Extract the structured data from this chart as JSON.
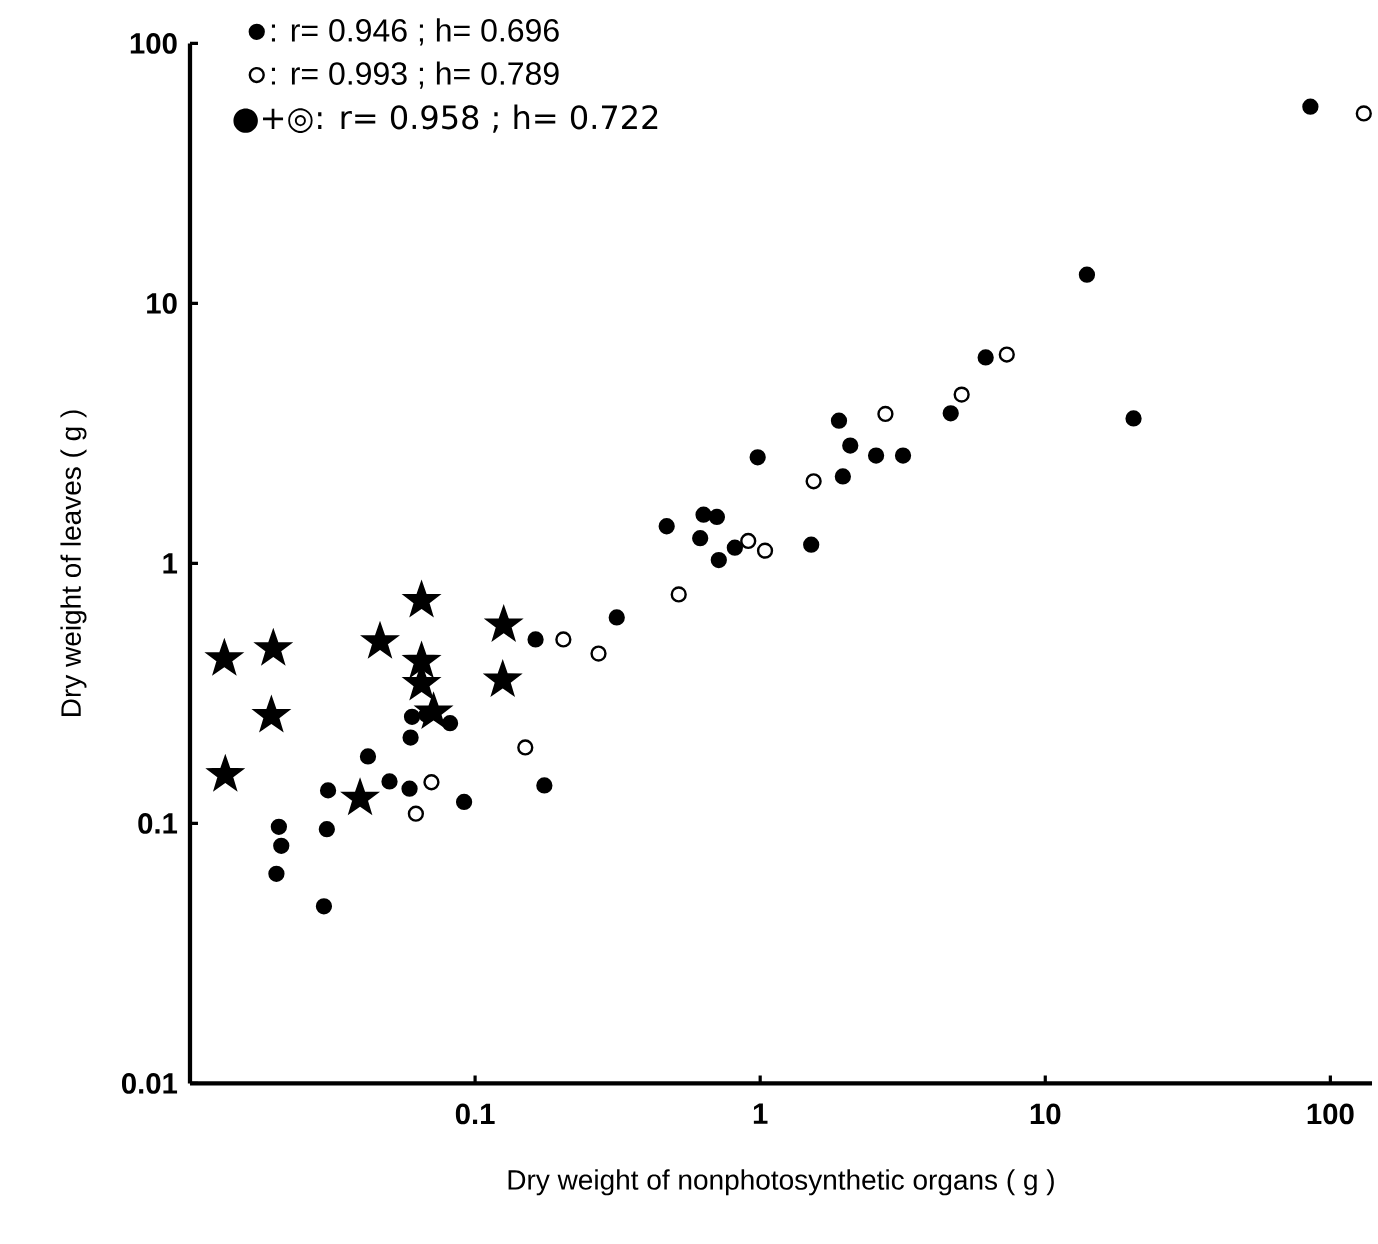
{
  "chart_data": {
    "type": "scatter",
    "log": "xy",
    "legend": "top left",
    "xlabel": "Dry  weight of nonphotosynthetic  organs ( g )",
    "ylabel": "Dry  weight  of  leaves ( g )",
    "xlim": [
      0.01,
      140
    ],
    "ylim": [
      0.01,
      100
    ],
    "xticks": [
      0.1,
      1,
      10,
      100
    ],
    "yticks": [
      0.01,
      0.1,
      1,
      10,
      100
    ],
    "annotations": [
      "●+◎: r= 0.958 ; h= 0.722"
    ],
    "series": [
      {
        "name": ": r= 0.946 ; h= 0.696",
        "color": "#000000",
        "marker": "circle",
        "x": [
          0.0601,
          0.0676,
          0.0817,
          0.0594,
          0.0421,
          0.0305,
          0.0501,
          0.0589,
          0.0915,
          0.175,
          0.0205,
          0.0209,
          0.0302,
          0.0201,
          0.0295,
          0.163,
          0.314,
          0.47,
          0.616,
          0.633,
          0.705,
          0.716,
          0.815,
          1.51,
          0.98,
          1.89,
          2.07,
          2.55,
          3.17,
          1.95,
          4.66,
          6.18,
          85.1,
          14.0,
          20.4
        ],
        "values": [
          0.257,
          0.262,
          0.243,
          0.214,
          0.181,
          0.134,
          0.145,
          0.136,
          0.121,
          0.14,
          0.097,
          0.082,
          0.095,
          0.064,
          0.048,
          0.51,
          0.62,
          1.39,
          1.25,
          1.54,
          1.51,
          1.03,
          1.15,
          1.18,
          2.56,
          3.54,
          2.84,
          2.6,
          2.6,
          2.16,
          3.78,
          6.2,
          57.1,
          12.9,
          3.61
        ]
      },
      {
        "name": ": r= 0.993 ; h= 0.789",
        "color": "#ffffff",
        "marker": "circle",
        "x": [
          0.204,
          0.271,
          0.15,
          0.0703,
          0.062,
          0.518,
          0.908,
          1.04,
          1.54,
          2.75,
          5.09,
          7.33,
          131
        ],
        "values": [
          0.51,
          0.45,
          0.196,
          0.144,
          0.109,
          0.76,
          1.22,
          1.12,
          2.07,
          3.76,
          4.46,
          6.36,
          53.8
        ]
      },
      {
        "color": "#000000",
        "marker": "star",
        "x": [
          0.0132,
          0.0196,
          0.0193,
          0.0133,
          0.0464,
          0.0649,
          0.0649,
          0.0649,
          0.0715,
          0.126,
          0.125,
          0.0395
        ],
        "values": [
          0.43,
          0.47,
          0.26,
          0.154,
          0.5,
          0.72,
          0.42,
          0.345,
          0.268,
          0.58,
          0.356,
          0.125
        ]
      }
    ]
  }
}
